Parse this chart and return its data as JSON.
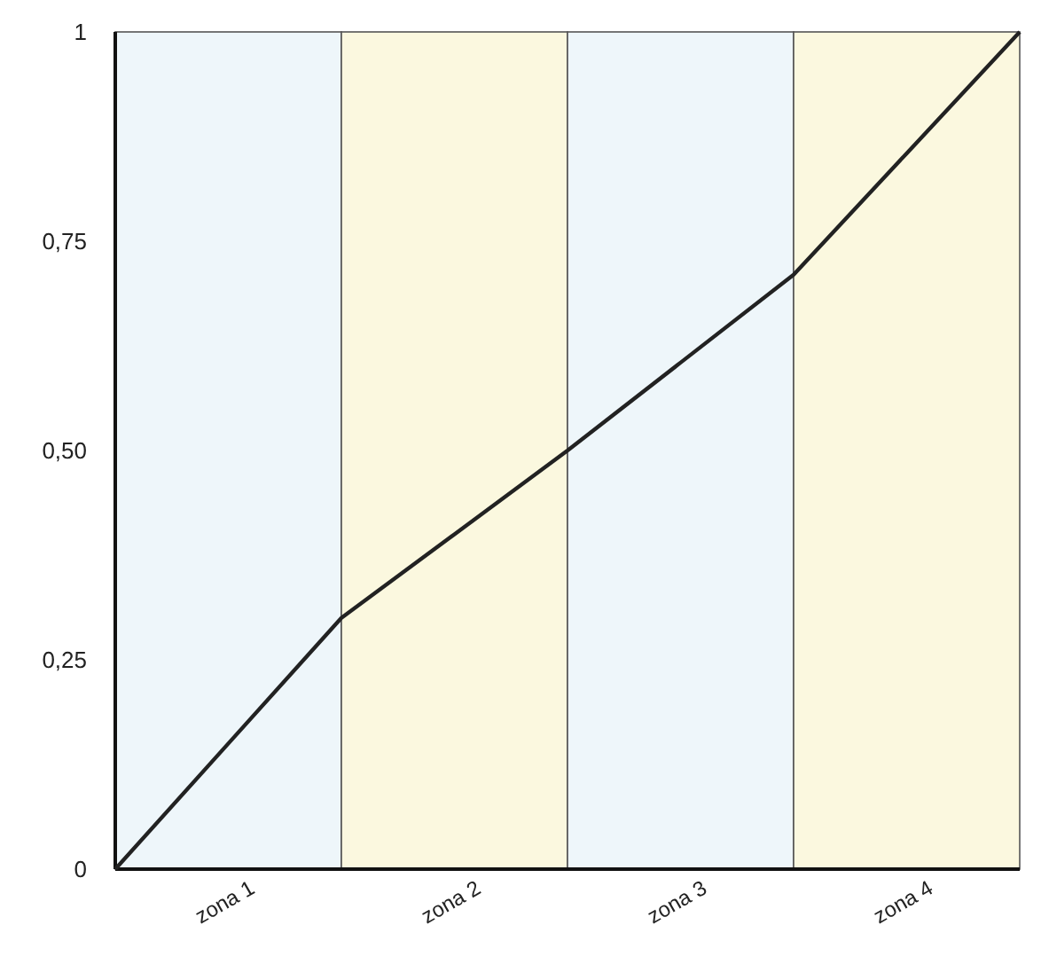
{
  "chart_data": {
    "type": "line",
    "categories": [
      null,
      "zona 1",
      null,
      "zona 2",
      null,
      "zona 3",
      null,
      "zona 4",
      null
    ],
    "series": [
      {
        "type": "bar",
        "colors": [
          null,
          "#eef6fa",
          null,
          "#fbf8df",
          null,
          "#eef6fa",
          null,
          "#fbf8df",
          null
        ],
        "values": [
          null,
          1,
          null,
          1,
          null,
          1,
          null,
          1,
          null
        ]
      },
      {
        "color": "#222222",
        "values": [
          0,
          0.15,
          0.3,
          0.4,
          0.5,
          0.605,
          0.71,
          0.855,
          1
        ]
      }
    ],
    "ylim": [
      0,
      1
    ],
    "yticks": [
      {
        "value": 0,
        "label": "0"
      },
      {
        "value": 0.25,
        "label": "0,25"
      },
      {
        "value": 0.5,
        "label": "0,50"
      },
      {
        "value": 0.75,
        "label": "0,75"
      },
      {
        "value": 1,
        "label": "1"
      }
    ],
    "grid": false,
    "marker": "none",
    "line_style": "solid"
  }
}
